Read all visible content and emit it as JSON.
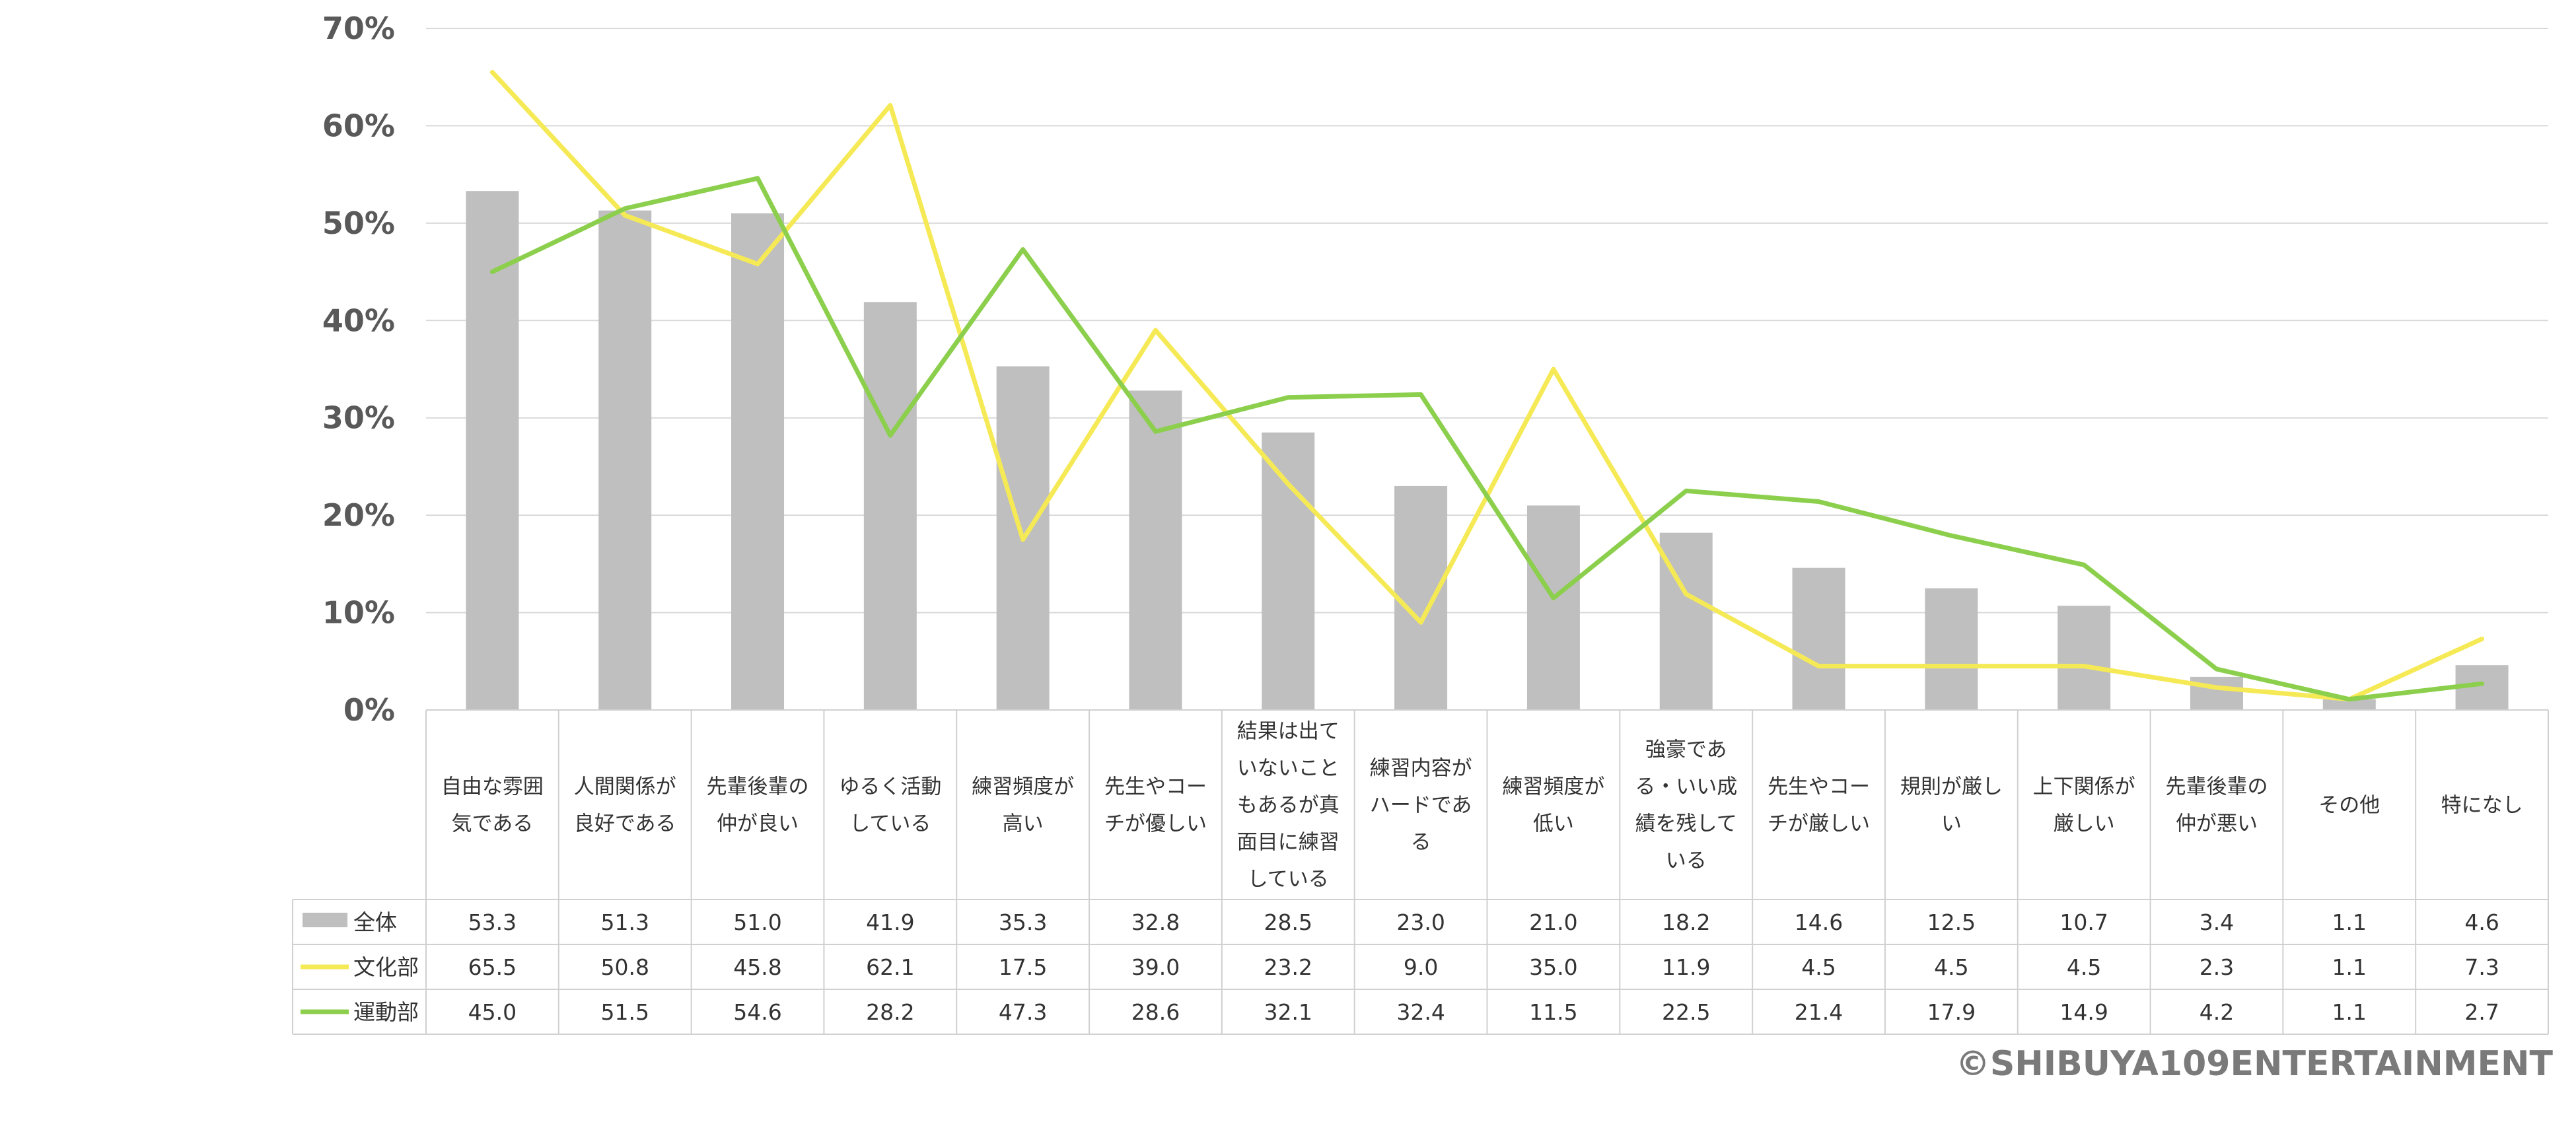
{
  "chart_data": {
    "type": "bar",
    "ylim": [
      0,
      70
    ],
    "y_ticks": [
      "0%",
      "10%",
      "20%",
      "30%",
      "40%",
      "50%",
      "60%",
      "70%"
    ],
    "grid": true,
    "categories": [
      [
        "自由な雰囲",
        "気である"
      ],
      [
        "人間関係が",
        "良好である"
      ],
      [
        "先輩後輩の",
        "仲が良い"
      ],
      [
        "ゆるく活動",
        "している"
      ],
      [
        "練習頻度が",
        "高い"
      ],
      [
        "先生やコー",
        "チが優しい"
      ],
      [
        "結果は出て",
        "いないこと",
        "もあるが真",
        "面目に練習",
        "している"
      ],
      [
        "練習内容が",
        "ハードであ",
        "る"
      ],
      [
        "練習頻度が",
        "低い"
      ],
      [
        "強豪であ",
        "る・いい成",
        "績を残して",
        "いる"
      ],
      [
        "先生やコー",
        "チが厳しい"
      ],
      [
        "規則が厳し",
        "い"
      ],
      [
        "上下関係が",
        "厳しい"
      ],
      [
        "先輩後輩の",
        "仲が悪い"
      ],
      [
        "その他"
      ],
      [
        "特になし"
      ]
    ],
    "series": [
      {
        "name": "全体",
        "kind": "bar",
        "color": "#bfbfbf",
        "values": [
          53.3,
          51.3,
          51.0,
          41.9,
          35.3,
          32.8,
          28.5,
          23.0,
          21.0,
          18.2,
          14.6,
          12.5,
          10.7,
          3.4,
          1.1,
          4.6
        ]
      },
      {
        "name": "文化部",
        "kind": "line",
        "color": "#f5ea55",
        "values": [
          65.5,
          50.8,
          45.8,
          62.1,
          17.5,
          39.0,
          23.2,
          9.0,
          35.0,
          11.9,
          4.5,
          4.5,
          4.5,
          2.3,
          1.1,
          7.3
        ]
      },
      {
        "name": "運動部",
        "kind": "line",
        "color": "#8ccf4d",
        "values": [
          45.0,
          51.5,
          54.6,
          28.2,
          47.3,
          28.6,
          32.1,
          32.4,
          11.5,
          22.5,
          21.4,
          17.9,
          14.9,
          4.2,
          1.1,
          2.7
        ]
      }
    ]
  },
  "copyright": "©SHIBUYA109ENTERTAINMENT"
}
